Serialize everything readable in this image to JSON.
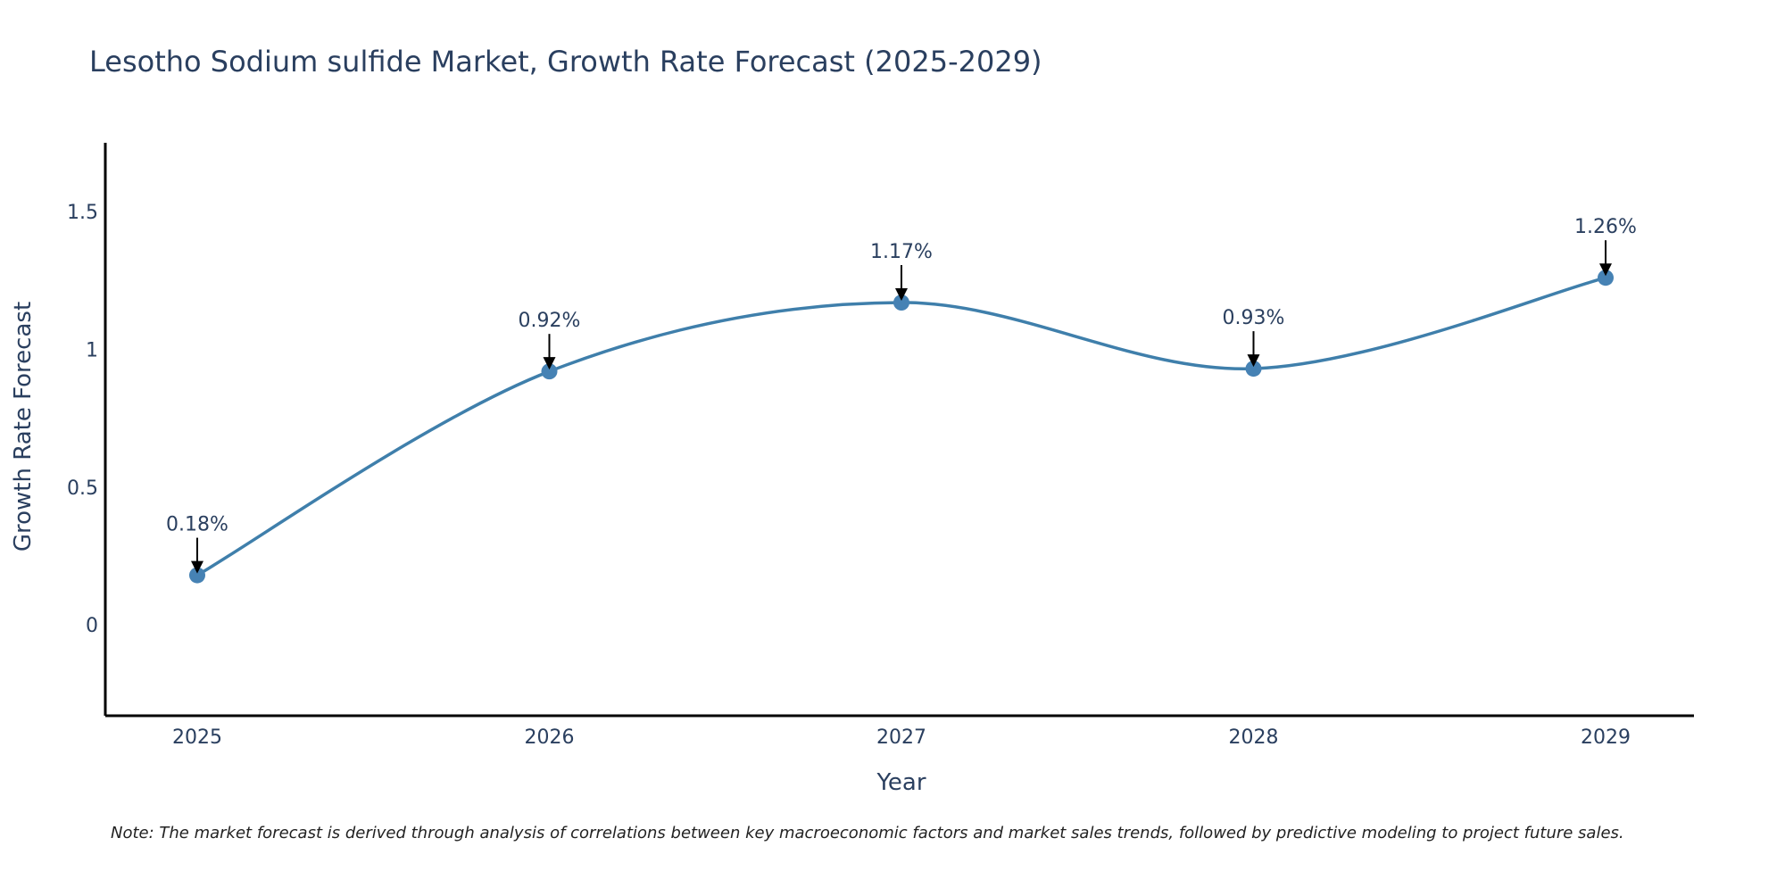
{
  "chart_data": {
    "type": "line",
    "title": "Lesotho Sodium sulfide Market, Growth Rate Forecast (2025-2029)",
    "xlabel": "Year",
    "ylabel": "Growth Rate Forecast",
    "categories": [
      "2025",
      "2026",
      "2027",
      "2028",
      "2029"
    ],
    "series": [
      {
        "name": "Growth Rate Forecast",
        "values": [
          0.18,
          0.92,
          1.17,
          0.93,
          1.26
        ]
      }
    ],
    "data_labels": [
      "0.18%",
      "0.92%",
      "1.17%",
      "0.93%",
      "1.26%"
    ],
    "ylim": [
      -0.33,
      1.75
    ],
    "yticks": [
      0,
      0.5,
      1,
      1.5
    ],
    "ytick_labels": [
      "0",
      "0.5",
      "1",
      "1.5"
    ],
    "grid": false,
    "line_color": "#3f7fab",
    "marker_color": "#4682b4",
    "note": "Note: The market forecast is derived through analysis of correlations between key macroeconomic factors and market sales trends, followed by predictive modeling to project future sales."
  }
}
